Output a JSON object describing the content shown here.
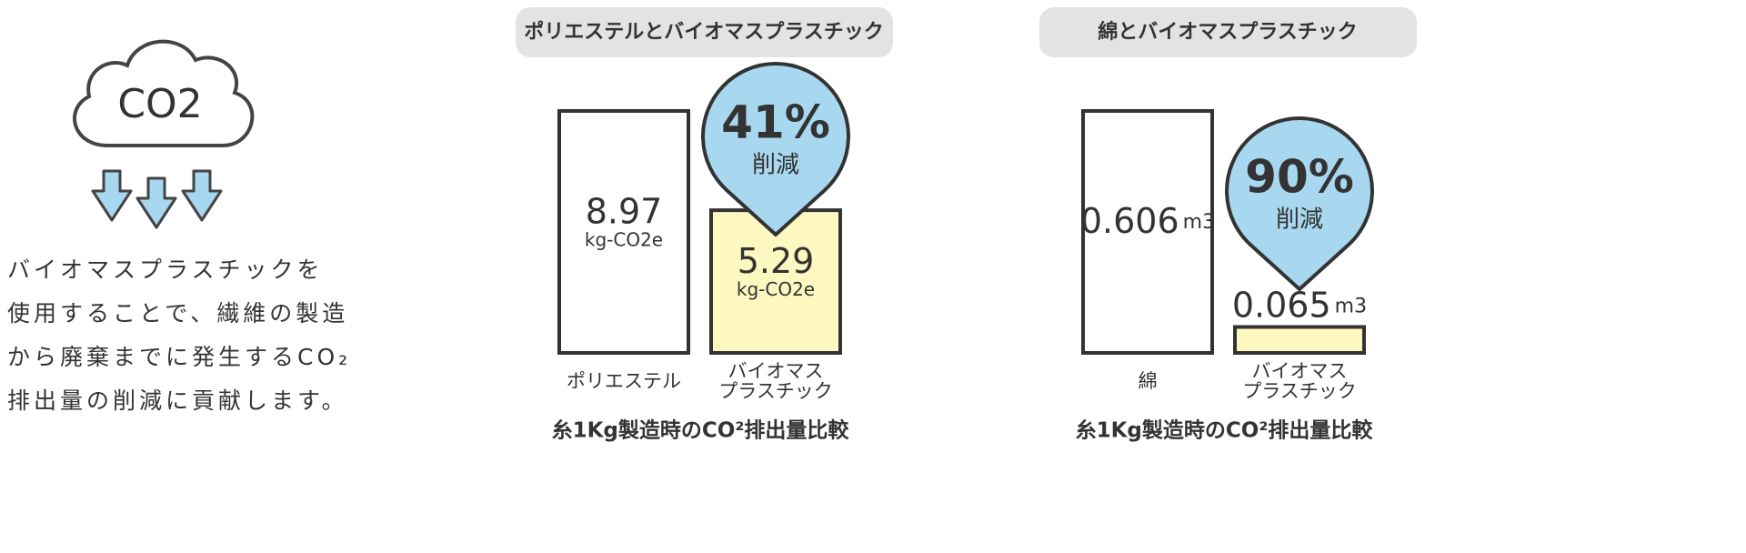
{
  "intro": {
    "icon_label": "CO2",
    "lines": [
      "バイオマスプラスチックを",
      "使用することで、繊維の製造",
      "から廃棄までに発生するCO₂",
      "排出量の削減に貢献します。"
    ]
  },
  "chart_data": [
    {
      "type": "bar",
      "title": "ポリエステルとバイオマスプラスチック",
      "categories": [
        "ポリエステル",
        "バイオマス\nプラスチック"
      ],
      "values": [
        8.97,
        5.29
      ],
      "unit": "kg-CO2e",
      "colors": [
        "#ffffff",
        "#fdf8c0"
      ],
      "badge": {
        "label": "41%",
        "text": "削減"
      },
      "footnote": "糸1Kg製造時のCO²排出量比較"
    },
    {
      "type": "bar",
      "title": "綿とバイオマスプラスチック",
      "categories": [
        "綿",
        "バイオマス\nプラスチック"
      ],
      "values": [
        0.606,
        0.065
      ],
      "unit": "m3",
      "colors": [
        "#ffffff",
        "#fdf8c0"
      ],
      "badge": {
        "label": "90%",
        "text": "削減"
      },
      "footnote": "糸1Kg製造時のCO²排出量比較"
    }
  ]
}
